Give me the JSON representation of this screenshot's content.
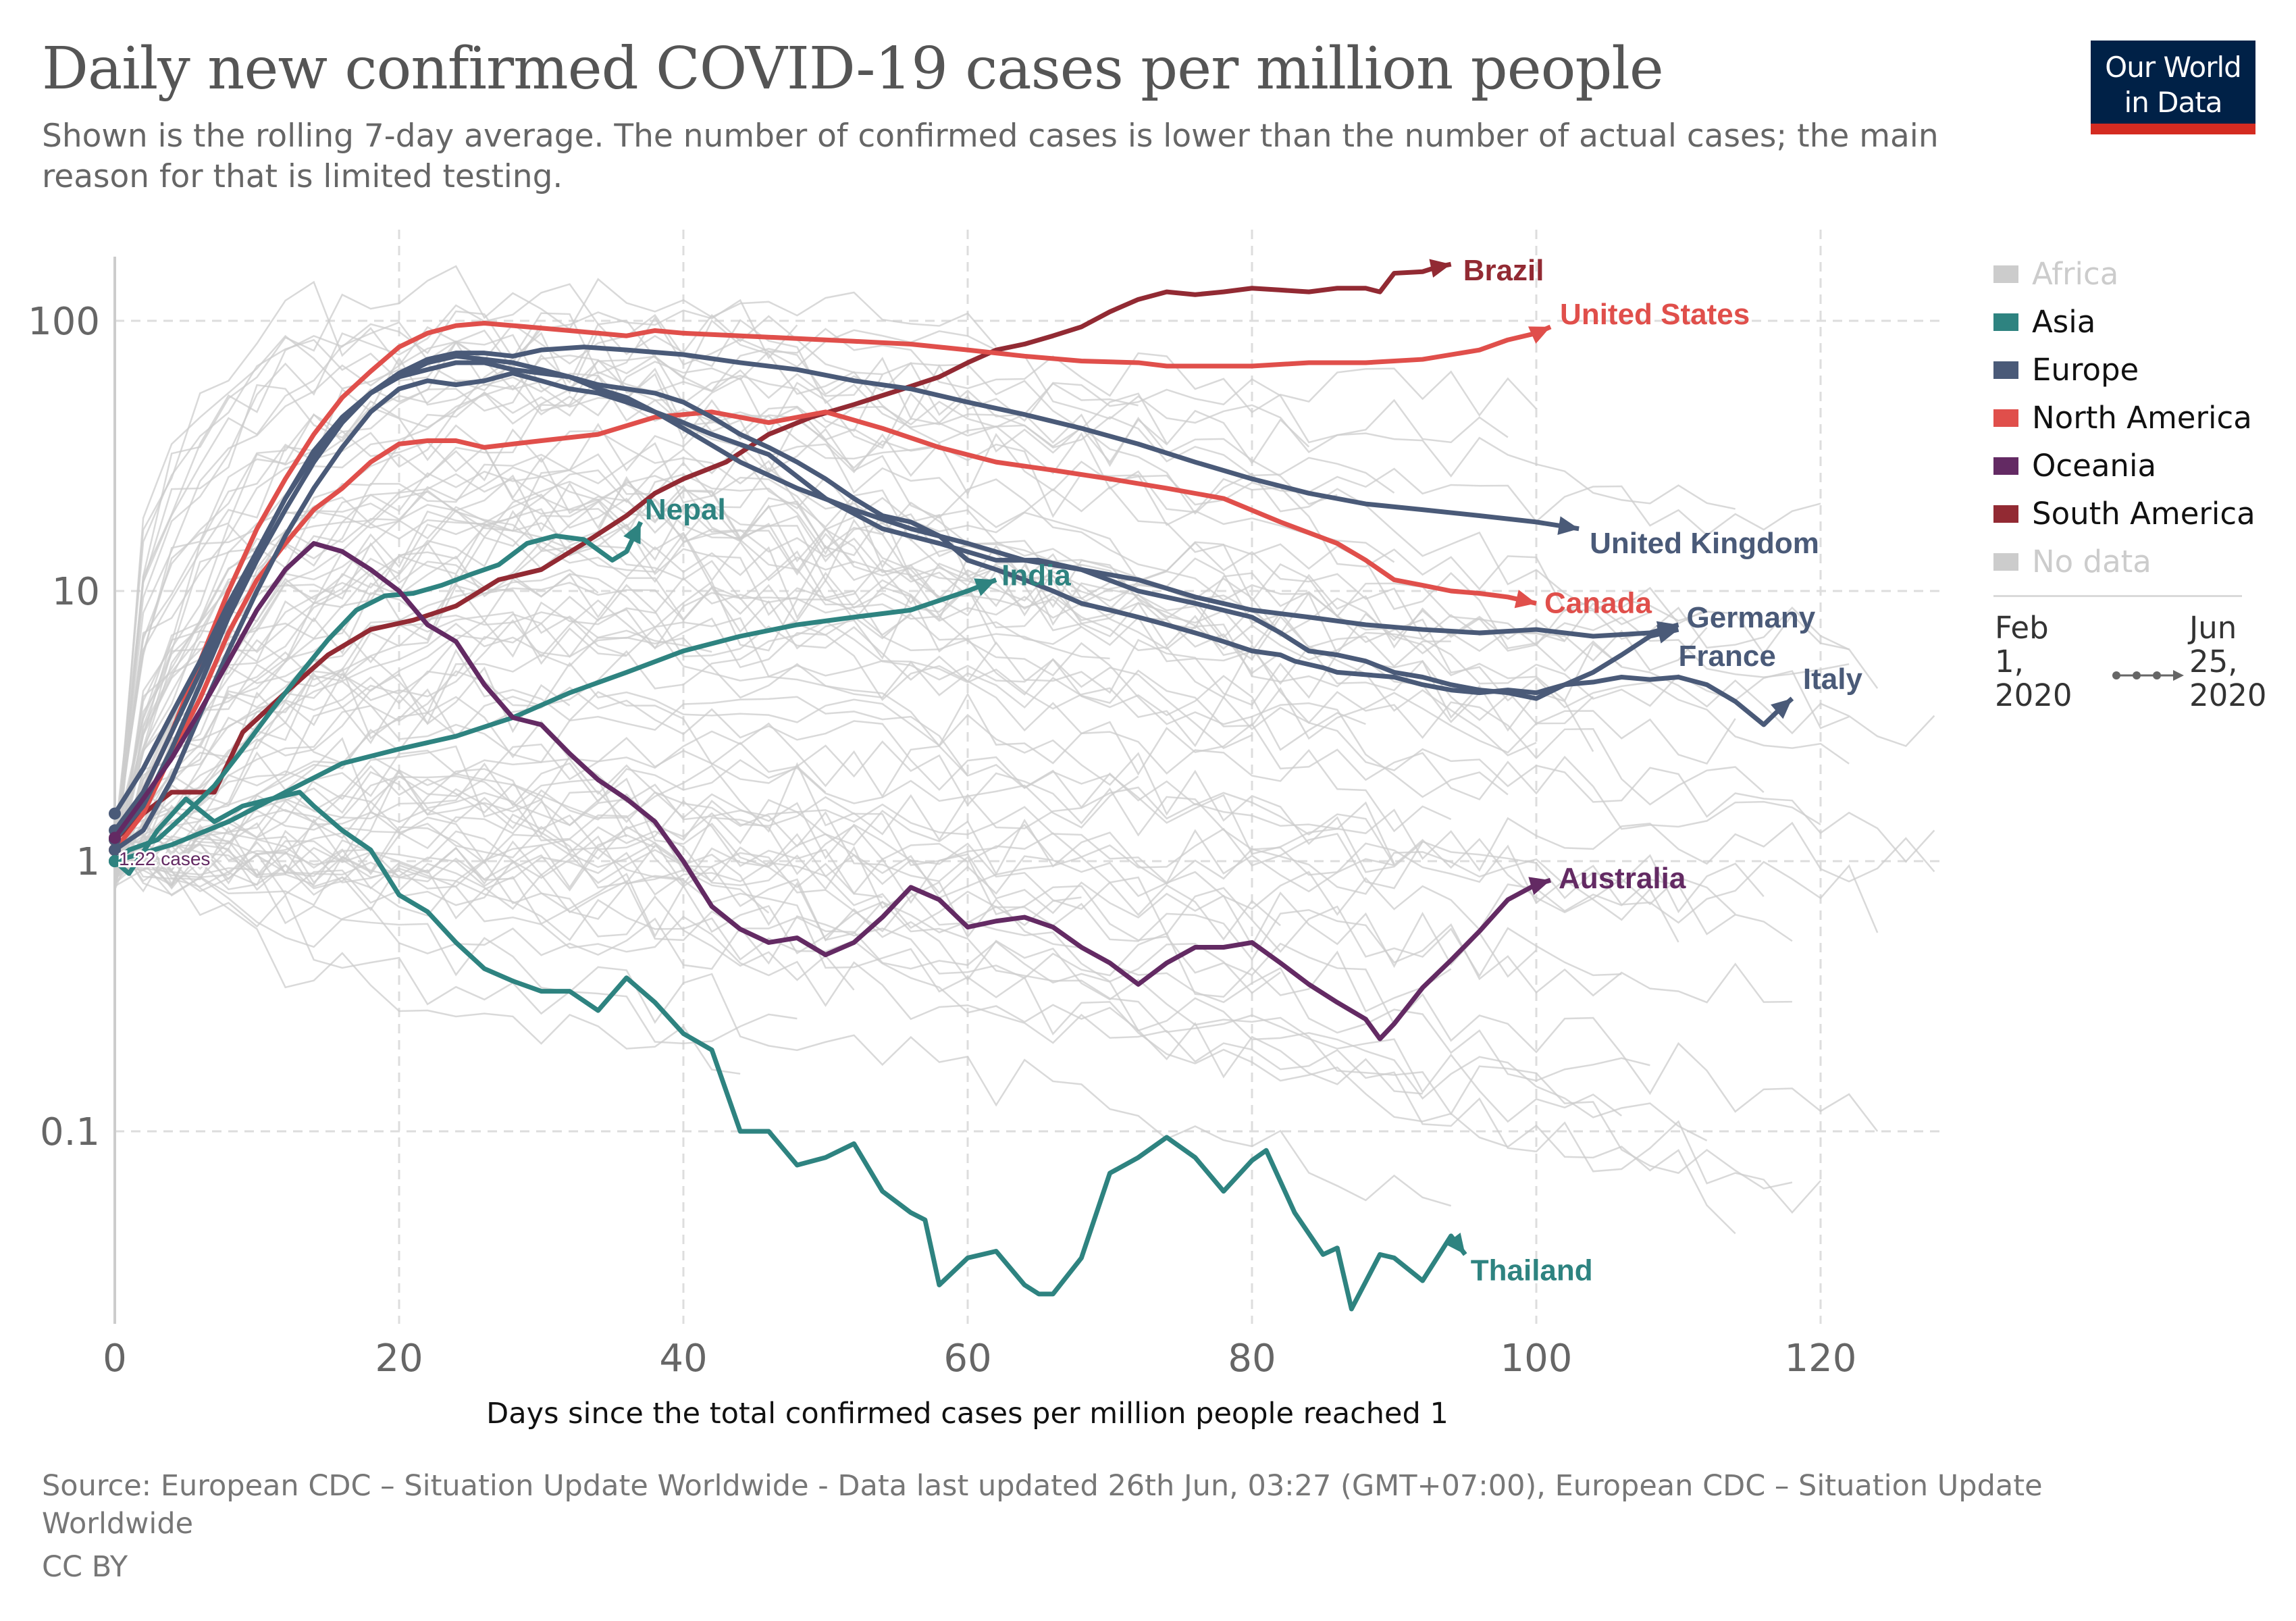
{
  "header": {
    "title": "Daily new confirmed COVID-19 cases per million people",
    "subtitle": "Shown is the rolling 7-day average. The number of confirmed cases is lower than the number of actual cases; the main reason for that is limited testing."
  },
  "logo": {
    "line1": "Our World",
    "line2": "in Data",
    "background": "#002147",
    "accent": "#d42b21"
  },
  "legend": {
    "items": [
      {
        "label": "Africa",
        "color": "#cccccc",
        "muted": true
      },
      {
        "label": "Asia",
        "color": "#2e8380",
        "muted": false
      },
      {
        "label": "Europe",
        "color": "#4a5a78",
        "muted": false
      },
      {
        "label": "North America",
        "color": "#e04f4b",
        "muted": false
      },
      {
        "label": "Oceania",
        "color": "#632a63",
        "muted": false
      },
      {
        "label": "South America",
        "color": "#922a33",
        "muted": false
      },
      {
        "label": "No data",
        "color": "#cccccc",
        "muted": true
      }
    ]
  },
  "timeline": {
    "start": "Feb\n1,\n2020",
    "end": "Jun\n25,\n2020"
  },
  "annotation": {
    "start_label": "1.22 cases",
    "color": "#632a63"
  },
  "footer": {
    "source": "Source: European CDC – Situation Update Worldwide - Data last updated 26th Jun, 03:27 (GMT+07:00), European CDC – Situation Update Worldwide",
    "license": "CC BY"
  },
  "chart_data": {
    "type": "line",
    "title": "Daily new confirmed COVID-19 cases per million people",
    "subtitle": "Shown is the rolling 7-day average. The number of confirmed cases is lower than the number of actual cases; the main reason for that is limited testing.",
    "xlabel": "Days since the total confirmed cases per million people reached 1",
    "ylabel": "",
    "yscale": "log",
    "xlim": [
      0,
      130
    ],
    "ylim": [
      0.019,
      170
    ],
    "x_ticks": [
      0,
      20,
      40,
      60,
      80,
      100,
      120
    ],
    "x_tick_labels": [
      "0",
      "20",
      "40",
      "60",
      "80",
      "100",
      "120"
    ],
    "y_ticks": [
      0.1,
      1,
      10,
      100
    ],
    "y_tick_labels": [
      "0.1",
      "1",
      "10",
      "100"
    ],
    "grid": true,
    "legend_position": "right",
    "background_series_color": "#cccccc",
    "series": [
      {
        "name": "Brazil",
        "region": "South America",
        "color": "#922a33",
        "label": "Brazil",
        "x": [
          0,
          2,
          4,
          7,
          9,
          12,
          15,
          18,
          21,
          24,
          27,
          30,
          33,
          36,
          38,
          40,
          43,
          46,
          49,
          52,
          55,
          58,
          60,
          62,
          64,
          66,
          68,
          70,
          72,
          74,
          76,
          78,
          80,
          82,
          84,
          86,
          88,
          89,
          90,
          92,
          93,
          94
        ],
        "y": [
          1.2,
          1.5,
          1.8,
          1.8,
          3.0,
          4.2,
          5.8,
          7.2,
          7.8,
          8.8,
          11,
          12,
          15,
          19,
          23,
          26,
          30,
          38,
          44,
          49,
          55,
          62,
          70,
          78,
          82,
          88,
          95,
          108,
          120,
          128,
          125,
          128,
          132,
          130,
          128,
          132,
          132,
          128,
          150,
          152,
          158,
          162
        ]
      },
      {
        "name": "United States",
        "region": "North America",
        "color": "#e04f4b",
        "label": "United States",
        "x": [
          0,
          2,
          4,
          6,
          8,
          10,
          12,
          14,
          16,
          18,
          20,
          22,
          24,
          26,
          28,
          30,
          32,
          34,
          36,
          38,
          40,
          44,
          48,
          52,
          56,
          60,
          64,
          68,
          72,
          74,
          76,
          80,
          84,
          88,
          92,
          96,
          98,
          100,
          101
        ],
        "y": [
          1.2,
          1.8,
          3,
          5.5,
          10,
          17,
          26,
          38,
          52,
          65,
          80,
          90,
          96,
          98,
          96,
          94,
          92,
          90,
          88,
          92,
          90,
          88,
          86,
          84,
          82,
          78,
          74,
          71,
          70,
          68,
          68,
          68,
          70,
          70,
          72,
          78,
          85,
          90,
          95
        ]
      },
      {
        "name": "Canada",
        "region": "North America",
        "color": "#e04f4b",
        "label": "Canada",
        "x": [
          0,
          2,
          4,
          6,
          8,
          10,
          12,
          14,
          16,
          18,
          20,
          22,
          24,
          26,
          28,
          30,
          34,
          38,
          42,
          46,
          50,
          54,
          58,
          62,
          66,
          70,
          74,
          78,
          82,
          86,
          88,
          90,
          92,
          94,
          96,
          98,
          100
        ],
        "y": [
          1.1,
          1.5,
          2.5,
          4,
          7,
          11,
          15,
          20,
          24,
          30,
          35,
          36,
          36,
          34,
          35,
          36,
          38,
          44,
          46,
          42,
          46,
          40,
          34,
          30,
          28,
          26,
          24,
          22,
          18,
          15,
          13,
          11,
          10.5,
          10,
          9.8,
          9.5,
          9
        ]
      },
      {
        "name": "United Kingdom",
        "region": "Europe",
        "color": "#4a5a78",
        "label": "United Kingdom",
        "x": [
          0,
          2,
          4,
          6,
          8,
          10,
          12,
          14,
          16,
          18,
          20,
          22,
          24,
          26,
          28,
          30,
          33,
          36,
          40,
          44,
          48,
          52,
          56,
          60,
          64,
          68,
          72,
          76,
          80,
          84,
          88,
          92,
          96,
          100,
          103
        ],
        "y": [
          1.2,
          1.6,
          2.6,
          4.5,
          8,
          13,
          20,
          30,
          42,
          54,
          64,
          72,
          76,
          76,
          74,
          78,
          80,
          78,
          75,
          70,
          66,
          60,
          56,
          50,
          45,
          40,
          35,
          30,
          26,
          23,
          21,
          20,
          19,
          18,
          17
        ]
      },
      {
        "name": "Germany",
        "region": "Europe",
        "color": "#4a5a78",
        "label": "Germany",
        "x": [
          0,
          2,
          4,
          6,
          8,
          10,
          12,
          14,
          16,
          18,
          20,
          22,
          24,
          26,
          28,
          30,
          32,
          34,
          36,
          38,
          40,
          44,
          48,
          52,
          56,
          60,
          64,
          68,
          72,
          76,
          80,
          84,
          88,
          92,
          96,
          100,
          104,
          108,
          110
        ],
        "y": [
          1.3,
          1.8,
          3,
          5,
          8.5,
          14,
          22,
          32,
          44,
          54,
          62,
          66,
          70,
          70,
          66,
          64,
          62,
          56,
          52,
          46,
          40,
          30,
          24,
          20,
          17,
          15,
          13,
          12,
          11,
          9.5,
          8.5,
          8,
          7.5,
          7.2,
          7,
          7.2,
          6.8,
          7,
          7.5
        ]
      },
      {
        "name": "France",
        "region": "Europe",
        "color": "#4a5a78",
        "label": "France",
        "x": [
          0,
          2,
          4,
          6,
          8,
          10,
          12,
          14,
          16,
          18,
          20,
          22,
          24,
          26,
          28,
          30,
          32,
          34,
          36,
          38,
          40,
          42,
          46,
          50,
          54,
          58,
          62,
          65,
          68,
          72,
          76,
          80,
          82,
          84,
          86,
          88,
          90,
          92,
          94,
          96,
          98,
          100,
          102,
          104,
          106,
          108,
          110
        ],
        "y": [
          1.1,
          1.3,
          2,
          3.5,
          6,
          10,
          16,
          24,
          34,
          46,
          56,
          60,
          58,
          60,
          64,
          60,
          56,
          54,
          50,
          46,
          42,
          38,
          32,
          22,
          17,
          15,
          13,
          13,
          12,
          10,
          9,
          8,
          7,
          6,
          5.8,
          5.5,
          5,
          4.8,
          4.5,
          4.3,
          4.2,
          4,
          4.5,
          5,
          5.8,
          6.8,
          7.2
        ]
      },
      {
        "name": "Italy",
        "region": "Europe",
        "color": "#4a5a78",
        "label": "Italy",
        "x": [
          0,
          2,
          4,
          6,
          8,
          10,
          12,
          14,
          16,
          18,
          20,
          22,
          24,
          26,
          28,
          30,
          32,
          34,
          36,
          38,
          40,
          42,
          44,
          46,
          48,
          50,
          52,
          54,
          56,
          58,
          60,
          62,
          64,
          66,
          68,
          70,
          72,
          74,
          76,
          78,
          80,
          82,
          83,
          85,
          86,
          88,
          90,
          92,
          94,
          96,
          98,
          100,
          102,
          104,
          106,
          108,
          110,
          112,
          114,
          116,
          117,
          118
        ],
        "y": [
          1.5,
          2.2,
          3.5,
          5.5,
          9,
          14,
          22,
          33,
          44,
          54,
          62,
          70,
          74,
          72,
          70,
          66,
          62,
          58,
          56,
          54,
          50,
          44,
          38,
          34,
          30,
          26,
          22,
          19,
          18,
          16,
          13,
          12,
          11,
          10,
          9,
          8.5,
          8,
          7.5,
          7,
          6.5,
          6,
          5.8,
          5.5,
          5.2,
          5,
          4.9,
          4.8,
          4.5,
          4.3,
          4.2,
          4.3,
          4.2,
          4.5,
          4.6,
          4.8,
          4.7,
          4.8,
          4.5,
          3.9,
          3.2,
          3.6,
          4.0
        ]
      },
      {
        "name": "Nepal",
        "region": "Asia",
        "color": "#2e8380",
        "label": "Nepal",
        "x": [
          0,
          1,
          3,
          5,
          7,
          9,
          11,
          13,
          15,
          17,
          19,
          21,
          23,
          25,
          27,
          29,
          31,
          33,
          35,
          36,
          37
        ],
        "y": [
          1.0,
          1.1,
          1.2,
          1.5,
          1.9,
          2.6,
          3.6,
          4.9,
          6.6,
          8.5,
          9.6,
          9.8,
          10.5,
          11.5,
          12.5,
          15,
          16,
          15.5,
          13,
          14,
          18
        ]
      },
      {
        "name": "India",
        "region": "Asia",
        "color": "#2e8380",
        "label": "India",
        "x": [
          0,
          4,
          8,
          12,
          16,
          20,
          24,
          28,
          32,
          36,
          40,
          44,
          48,
          52,
          56,
          60,
          62
        ],
        "y": [
          1.0,
          1.15,
          1.4,
          1.8,
          2.3,
          2.6,
          2.9,
          3.4,
          4.2,
          5,
          6,
          6.8,
          7.5,
          8,
          8.5,
          10,
          11
        ]
      },
      {
        "name": "Thailand",
        "region": "Asia",
        "color": "#2e8380",
        "label": "Thailand",
        "x": [
          0,
          1,
          3,
          5,
          7,
          9,
          11,
          13,
          14,
          16,
          18,
          20,
          22,
          24,
          26,
          28,
          30,
          32,
          34,
          36,
          38,
          40,
          42,
          44,
          46,
          48,
          50,
          52,
          54,
          56,
          57,
          58,
          60,
          62,
          64,
          65,
          66,
          68,
          70,
          72,
          74,
          76,
          78,
          80,
          81,
          83,
          85,
          86,
          87,
          89,
          90,
          92,
          94,
          95
        ],
        "y": [
          1.0,
          0.9,
          1.3,
          1.7,
          1.4,
          1.6,
          1.7,
          1.8,
          1.6,
          1.3,
          1.1,
          0.75,
          0.65,
          0.5,
          0.4,
          0.36,
          0.33,
          0.33,
          0.28,
          0.37,
          0.3,
          0.23,
          0.2,
          0.1,
          0.1,
          0.075,
          0.08,
          0.09,
          0.06,
          0.05,
          0.047,
          0.027,
          0.034,
          0.036,
          0.027,
          0.025,
          0.025,
          0.034,
          0.07,
          0.08,
          0.095,
          0.08,
          0.06,
          0.078,
          0.085,
          0.05,
          0.035,
          0.037,
          0.022,
          0.035,
          0.034,
          0.028,
          0.041,
          0.035
        ]
      },
      {
        "name": "Australia",
        "region": "Oceania",
        "color": "#632a63",
        "label": "Australia",
        "x": [
          0,
          2,
          4,
          6,
          8,
          10,
          12,
          14,
          16,
          18,
          20,
          22,
          24,
          26,
          28,
          30,
          32,
          34,
          36,
          38,
          40,
          42,
          44,
          46,
          48,
          50,
          52,
          54,
          56,
          58,
          60,
          62,
          64,
          66,
          68,
          70,
          72,
          74,
          76,
          78,
          80,
          82,
          84,
          86,
          88,
          89,
          90,
          92,
          94,
          96,
          98,
          100,
          101
        ],
        "y": [
          1.22,
          1.7,
          2.4,
          3.6,
          5.5,
          8.5,
          12,
          15,
          14,
          12,
          10,
          7.5,
          6.5,
          4.5,
          3.4,
          3.2,
          2.5,
          2,
          1.7,
          1.4,
          1,
          0.68,
          0.56,
          0.5,
          0.52,
          0.45,
          0.5,
          0.62,
          0.8,
          0.72,
          0.57,
          0.6,
          0.62,
          0.57,
          0.48,
          0.42,
          0.35,
          0.42,
          0.48,
          0.48,
          0.5,
          0.42,
          0.35,
          0.3,
          0.26,
          0.22,
          0.25,
          0.34,
          0.43,
          0.55,
          0.72,
          0.82,
          0.85
        ]
      }
    ]
  }
}
